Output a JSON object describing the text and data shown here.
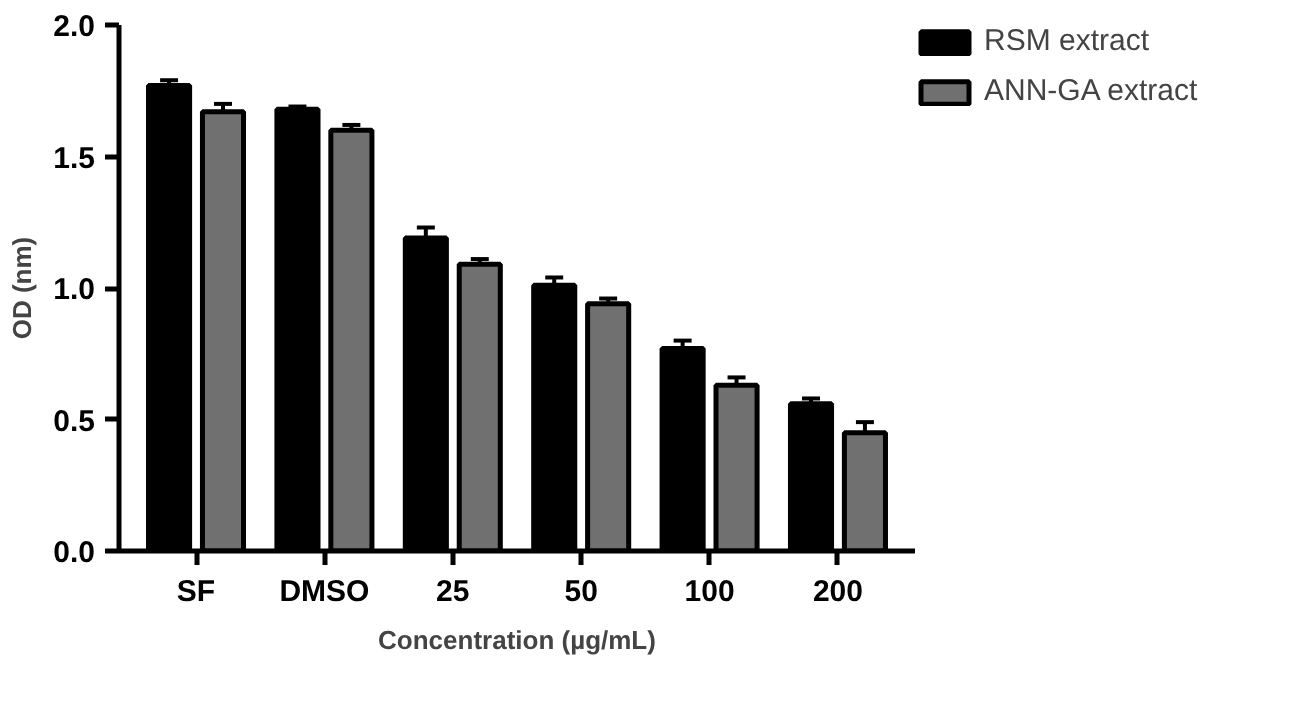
{
  "chart_data": {
    "type": "bar",
    "xlabel": "Concentration (µg/mL)",
    "ylabel": "OD (nm)",
    "categories": [
      "SF",
      "DMSO",
      "25",
      "50",
      "100",
      "200"
    ],
    "series": [
      {
        "name": "RSM extract",
        "color": "#000000",
        "values": [
          1.77,
          1.68,
          1.19,
          1.01,
          0.77,
          0.56
        ],
        "errors": [
          0.02,
          0.01,
          0.04,
          0.03,
          0.03,
          0.02
        ]
      },
      {
        "name": "ANN-GA extract",
        "color": "#707070",
        "values": [
          1.67,
          1.6,
          1.09,
          0.94,
          0.63,
          0.45
        ],
        "errors": [
          0.03,
          0.02,
          0.02,
          0.02,
          0.03,
          0.04
        ]
      }
    ],
    "ylim": [
      0,
      2.0
    ],
    "yticks": [
      {
        "value": 0,
        "label": "0.0"
      },
      {
        "value": 0.5,
        "label": "0.5"
      },
      {
        "value": 1,
        "label": "1.0"
      },
      {
        "value": 1.5,
        "label": "1.5"
      },
      {
        "value": 2,
        "label": "2.0"
      }
    ],
    "grid": false,
    "legend": "top right"
  }
}
